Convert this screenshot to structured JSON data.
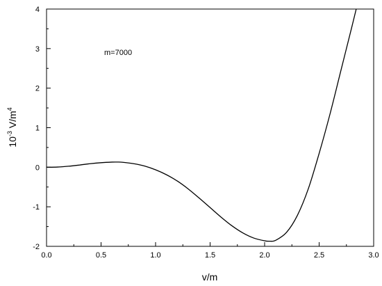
{
  "chart_data": {
    "type": "line",
    "title": "",
    "xlabel": "v/m",
    "ylabel": {
      "base": "10",
      "base_exp": "-3",
      "symbol": " V/m",
      "symbol_exp": "4"
    },
    "annotation": "m=7000",
    "xlim": [
      0.0,
      3.0
    ],
    "ylim": [
      -2,
      4
    ],
    "x_ticks": [
      "0.0",
      "0.5",
      "1.0",
      "1.5",
      "2.0",
      "2.5",
      "3.0"
    ],
    "y_ticks": [
      "-2",
      "-1",
      "0",
      "1",
      "2",
      "3",
      "4"
    ],
    "grid": false,
    "series": [
      {
        "color": "#000000",
        "x": [
          0.0,
          0.1,
          0.2,
          0.3,
          0.4,
          0.5,
          0.6,
          0.65,
          0.7,
          0.8,
          0.9,
          1.0,
          1.1,
          1.2,
          1.3,
          1.4,
          1.5,
          1.6,
          1.7,
          1.8,
          1.9,
          2.0,
          2.05,
          2.1,
          2.2,
          2.3,
          2.4,
          2.5,
          2.6,
          2.7,
          2.8,
          2.84
        ],
        "y": [
          0.0,
          0.005,
          0.025,
          0.055,
          0.09,
          0.115,
          0.13,
          0.131,
          0.125,
          0.09,
          0.03,
          -0.065,
          -0.19,
          -0.35,
          -0.55,
          -0.78,
          -1.02,
          -1.26,
          -1.48,
          -1.66,
          -1.79,
          -1.86,
          -1.87,
          -1.85,
          -1.65,
          -1.22,
          -0.55,
          0.35,
          1.35,
          2.45,
          3.55,
          4.0
        ]
      }
    ]
  }
}
